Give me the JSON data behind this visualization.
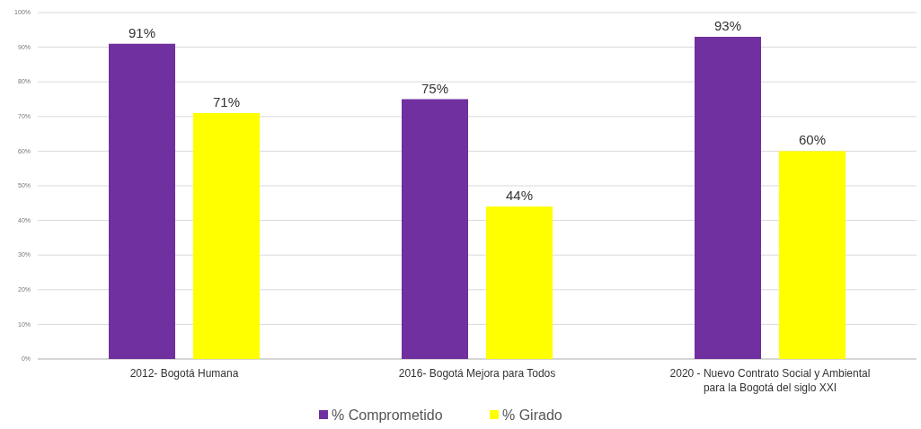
{
  "chart_data": {
    "type": "bar",
    "categories": [
      "2012- Bogotá Humana",
      "2016- Bogotá Mejora para Todos",
      "2020 - Nuevo Contrato Social y Ambiental para la Bogotá del siglo XXI"
    ],
    "series": [
      {
        "name": "% Comprometido",
        "color": "#7030a0",
        "values": [
          91,
          75,
          93
        ],
        "value_labels": [
          "91%",
          "75%",
          "93%"
        ]
      },
      {
        "name": "% Girado",
        "color": "#ffff00",
        "values": [
          71,
          44,
          60
        ],
        "value_labels": [
          "71%",
          "44%",
          "60%"
        ]
      }
    ],
    "ylim": [
      0,
      100
    ],
    "yticks": [
      {
        "value": 0,
        "label": "0%"
      },
      {
        "value": 10,
        "label": "10%"
      },
      {
        "value": 20,
        "label": "20%"
      },
      {
        "value": 30,
        "label": "30%"
      },
      {
        "value": 40,
        "label": "40%"
      },
      {
        "value": 50,
        "label": "50%"
      },
      {
        "value": 60,
        "label": "60%"
      },
      {
        "value": 70,
        "label": "70%"
      },
      {
        "value": 80,
        "label": "80%"
      },
      {
        "value": 90,
        "label": "90%"
      },
      {
        "value": 100,
        "label": "100%"
      }
    ],
    "grid": "y",
    "legend": "bottom"
  }
}
